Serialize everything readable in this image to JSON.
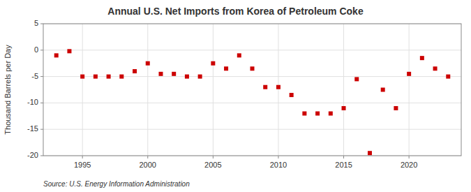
{
  "chart_data": {
    "type": "scatter",
    "title": "Annual U.S. Net Imports from Korea of Petroleum Coke",
    "ylabel": "Thousand Barrels per Day",
    "annotations": [
      "Source: U.S. Energy Information Administration"
    ],
    "x": [
      1993,
      1994,
      1995,
      1996,
      1997,
      1998,
      1999,
      2000,
      2001,
      2002,
      2003,
      2004,
      2005,
      2006,
      2007,
      2008,
      2009,
      2010,
      2011,
      2012,
      2013,
      2014,
      2015,
      2016,
      2017,
      2018,
      2019,
      2020,
      2021,
      2022,
      2023
    ],
    "values": [
      -1.0,
      -0.2,
      -5.0,
      -5.0,
      -5.0,
      -5.0,
      -4.0,
      -2.5,
      -4.5,
      -4.5,
      -5.0,
      -5.0,
      -2.5,
      -3.5,
      -1.0,
      -3.5,
      -7.0,
      -7.0,
      -8.5,
      -12.0,
      -12.0,
      -12.0,
      -11.0,
      -5.5,
      -19.5,
      -7.5,
      -11.0,
      -4.5,
      -1.5,
      -3.5,
      -5.0
    ],
    "color": "#cc0000",
    "marker": "square",
    "xlim": [
      1992,
      2024
    ],
    "ylim": [
      -20,
      5
    ],
    "xticks": [
      1995,
      2000,
      2005,
      2010,
      2015,
      2020
    ],
    "yticks": [
      5,
      0,
      -5,
      -10,
      -15,
      -20
    ],
    "grid": true
  }
}
